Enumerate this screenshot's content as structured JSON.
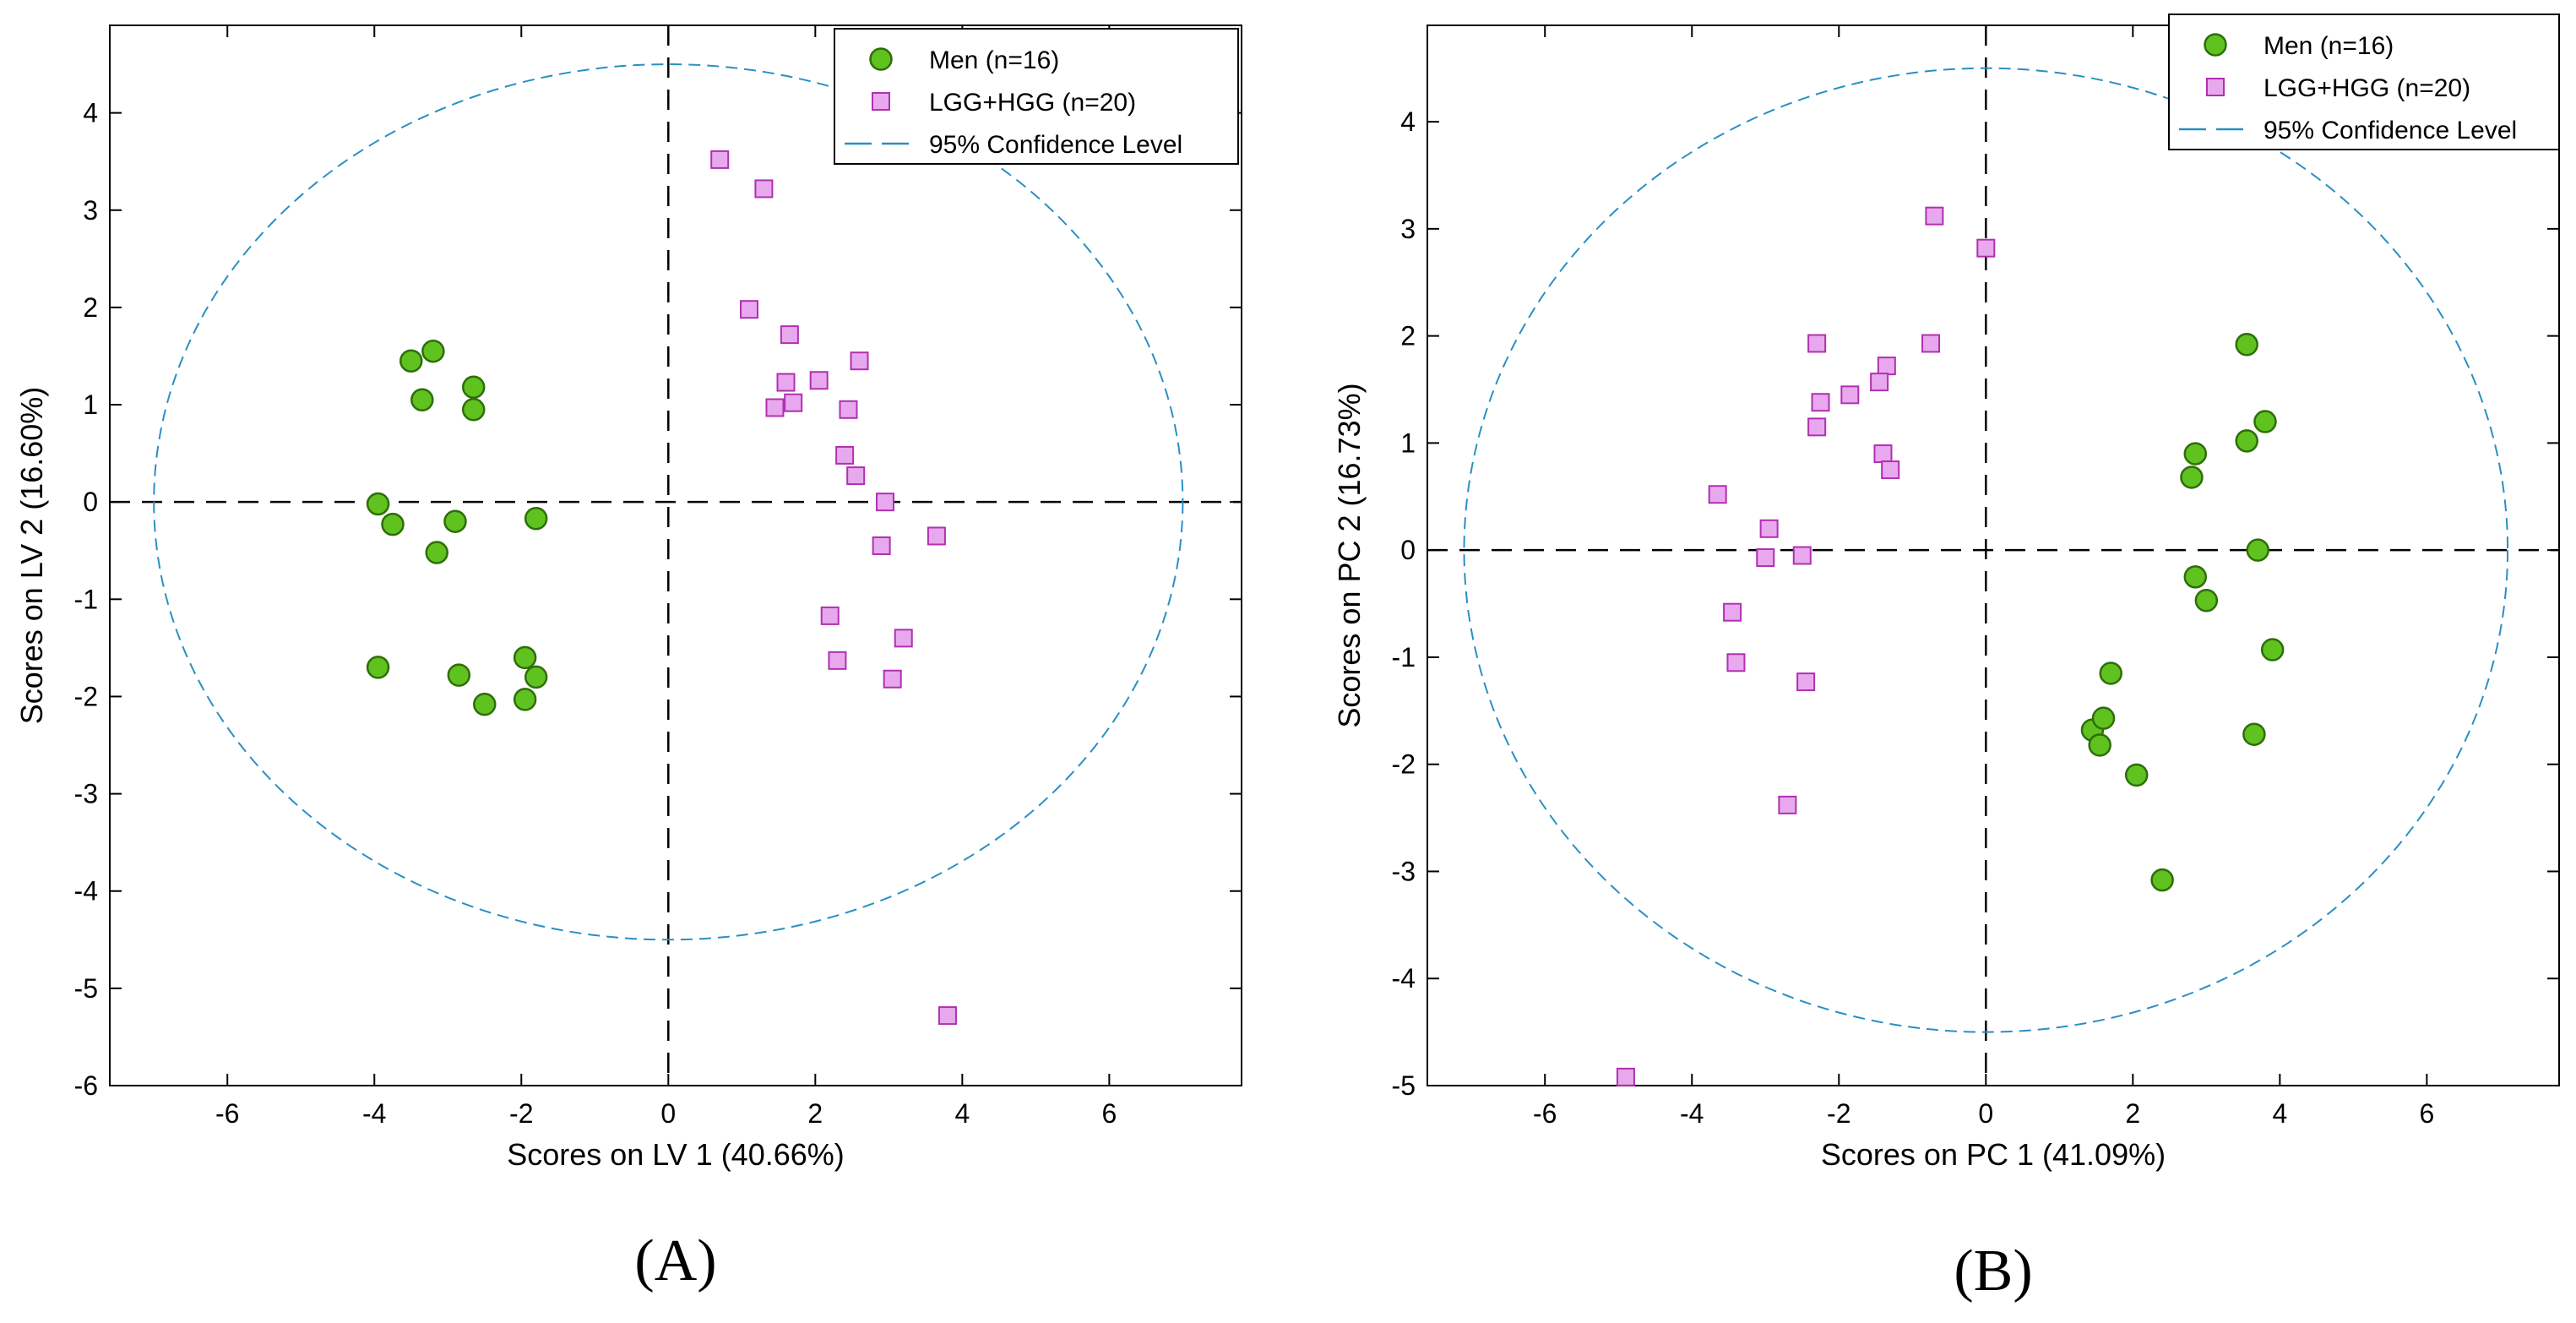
{
  "chart_data": [
    {
      "type": "scatter",
      "panel_label": "(A)",
      "xlabel": "Scores on LV 1 (40.66%)",
      "ylabel": "Scores on LV 2 (16.60%)",
      "xlim": [
        -7.6,
        7.8
      ],
      "ylim": [
        -6,
        4.9
      ],
      "xticks": [
        -6,
        -4,
        -2,
        0,
        2,
        4,
        6
      ],
      "yticks": [
        -6,
        -5,
        -4,
        -3,
        -2,
        -1,
        0,
        1,
        2,
        3,
        4
      ],
      "legend": {
        "position": "top-right",
        "entries": [
          "Men (n=16)",
          "LGG+HGG (n=20)",
          "95% Confidence Level"
        ]
      },
      "ellipse": {
        "center": [
          0,
          0
        ],
        "rx": 7.0,
        "ry": 4.5
      },
      "series": [
        {
          "name": "Men (n=16)",
          "marker": "circle",
          "color": "#5fc21f",
          "points": [
            [
              -3.5,
              1.45
            ],
            [
              -3.2,
              1.55
            ],
            [
              -3.35,
              1.05
            ],
            [
              -2.65,
              1.18
            ],
            [
              -2.65,
              0.95
            ],
            [
              -3.95,
              -0.02
            ],
            [
              -3.75,
              -0.23
            ],
            [
              -2.9,
              -0.2
            ],
            [
              -3.15,
              -0.52
            ],
            [
              -1.8,
              -0.17
            ],
            [
              -3.95,
              -1.7
            ],
            [
              -2.85,
              -1.78
            ],
            [
              -1.95,
              -1.6
            ],
            [
              -1.8,
              -1.8
            ],
            [
              -2.5,
              -2.08
            ],
            [
              -1.95,
              -2.03
            ]
          ]
        },
        {
          "name": "LGG+HGG (n=20)",
          "marker": "square",
          "color": "#e8a8ee",
          "points": [
            [
              0.7,
              3.52
            ],
            [
              1.3,
              3.22
            ],
            [
              1.1,
              1.98
            ],
            [
              1.65,
              1.72
            ],
            [
              2.6,
              1.45
            ],
            [
              1.6,
              1.23
            ],
            [
              2.05,
              1.25
            ],
            [
              1.45,
              0.97
            ],
            [
              1.7,
              1.02
            ],
            [
              2.45,
              0.95
            ],
            [
              2.4,
              0.48
            ],
            [
              2.55,
              0.27
            ],
            [
              2.95,
              0.0
            ],
            [
              3.65,
              -0.35
            ],
            [
              2.9,
              -0.45
            ],
            [
              2.2,
              -1.17
            ],
            [
              3.2,
              -1.4
            ],
            [
              2.3,
              -1.63
            ],
            [
              3.05,
              -1.82
            ],
            [
              3.8,
              -5.28
            ]
          ]
        }
      ]
    },
    {
      "type": "scatter",
      "panel_label": "(B)",
      "xlabel": "Scores on PC 1 (41.09%)",
      "ylabel": "Scores on PC 2 (16.73%)",
      "xlim": [
        -7.6,
        7.8
      ],
      "ylim": [
        -5,
        4.9
      ],
      "xticks": [
        -6,
        -4,
        -2,
        0,
        2,
        4,
        6
      ],
      "yticks": [
        -5,
        -4,
        -3,
        -2,
        -1,
        0,
        1,
        2,
        3,
        4
      ],
      "legend": {
        "position": "top-right",
        "entries": [
          "Men (n=16)",
          "LGG+HGG (n=20)",
          "95% Confidence Level"
        ]
      },
      "ellipse": {
        "center": [
          0,
          0
        ],
        "rx": 7.1,
        "ry": 4.5
      },
      "series": [
        {
          "name": "Men (n=16)",
          "marker": "circle",
          "color": "#5fc21f",
          "points": [
            [
              3.55,
              1.92
            ],
            [
              3.8,
              1.2
            ],
            [
              3.55,
              1.02
            ],
            [
              2.85,
              0.9
            ],
            [
              2.8,
              0.68
            ],
            [
              3.7,
              0.0
            ],
            [
              2.85,
              -0.25
            ],
            [
              3.0,
              -0.47
            ],
            [
              3.9,
              -0.93
            ],
            [
              1.7,
              -1.15
            ],
            [
              1.45,
              -1.68
            ],
            [
              1.6,
              -1.57
            ],
            [
              1.55,
              -1.82
            ],
            [
              3.65,
              -1.72
            ],
            [
              2.05,
              -2.1
            ],
            [
              2.4,
              -3.08
            ]
          ]
        },
        {
          "name": "LGG+HGG (n=20)",
          "marker": "square",
          "color": "#e8a8ee",
          "points": [
            [
              -0.7,
              3.12
            ],
            [
              0.0,
              2.82
            ],
            [
              -2.3,
              1.93
            ],
            [
              -0.75,
              1.93
            ],
            [
              -1.35,
              1.72
            ],
            [
              -1.45,
              1.57
            ],
            [
              -1.85,
              1.45
            ],
            [
              -2.25,
              1.38
            ],
            [
              -2.3,
              1.15
            ],
            [
              -1.4,
              0.9
            ],
            [
              -1.3,
              0.75
            ],
            [
              -3.65,
              0.52
            ],
            [
              -2.95,
              0.2
            ],
            [
              -3.0,
              -0.07
            ],
            [
              -2.5,
              -0.05
            ],
            [
              -3.45,
              -0.58
            ],
            [
              -3.4,
              -1.05
            ],
            [
              -2.45,
              -1.23
            ],
            [
              -2.7,
              -2.38
            ],
            [
              -4.9,
              -4.92
            ]
          ]
        }
      ]
    }
  ]
}
